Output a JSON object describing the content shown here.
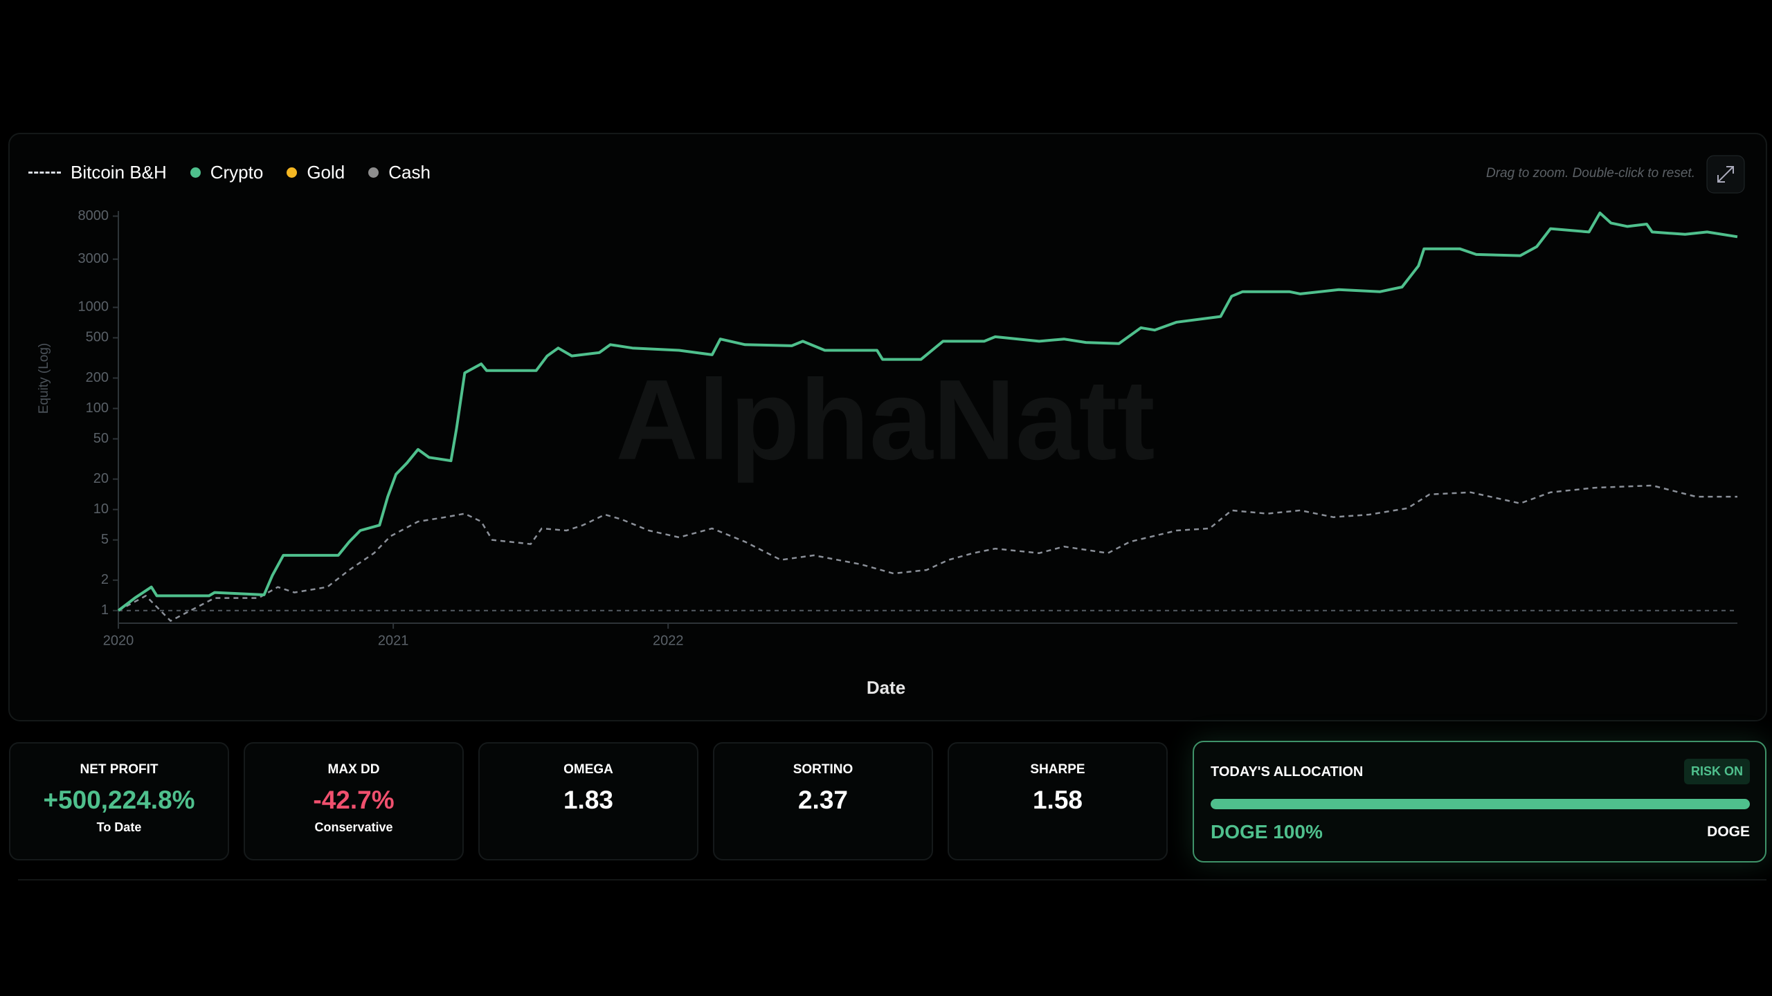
{
  "chart_data": {
    "type": "line",
    "yscale": "log",
    "grid": false,
    "legend": [
      {
        "name": "Bitcoin B&H",
        "color": "#d9dde3",
        "marker": "dashed-line"
      },
      {
        "name": "Crypto",
        "color": "#4fc08d",
        "marker": "dot"
      },
      {
        "name": "Gold",
        "color": "#f5b722",
        "marker": "dot"
      },
      {
        "name": "Cash",
        "color": "#8e8e8e",
        "marker": "dot"
      }
    ],
    "hint": "Drag to zoom. Double-click to reset.",
    "watermark": "AlphaNatt",
    "ylabel": "Equity (Log)",
    "xlabel": "Date",
    "xlim": [
      2020,
      2025.89
    ],
    "xticks": [
      2020,
      2021,
      2022
    ],
    "ylim": [
      0.75,
      9000
    ],
    "yticks": [
      1,
      2,
      5,
      10,
      20,
      50,
      100,
      200,
      500,
      1000,
      3000,
      8000
    ],
    "reference_line": 1,
    "series": [
      {
        "color": "#4fc08d",
        "dashed": false,
        "x": [
          2020.0,
          2020.06,
          2020.12,
          2020.14,
          2020.19,
          2020.33,
          2020.35,
          2020.53,
          2020.56,
          2020.6,
          2020.8,
          2020.84,
          2020.88,
          2020.95,
          2020.98,
          2021.01,
          2021.05,
          2021.09,
          2021.13,
          2021.21,
          2021.23,
          2021.26,
          2021.32,
          2021.34,
          2021.52,
          2021.56,
          2021.6,
          2021.65,
          2021.75,
          2021.79,
          2021.87,
          2022.04,
          2022.16,
          2022.19,
          2022.28,
          2022.45,
          2022.49,
          2022.57,
          2022.76,
          2022.78,
          2022.92,
          2023.0,
          2023.15,
          2023.19,
          2023.35,
          2023.44,
          2023.52,
          2023.64,
          2023.72,
          2023.77,
          2023.85,
          2024.01,
          2024.05,
          2024.09,
          2024.26,
          2024.3,
          2024.44,
          2024.59,
          2024.67,
          2024.73,
          2024.75,
          2024.88,
          2024.94,
          2025.1,
          2025.16,
          2025.21,
          2025.35,
          2025.39,
          2025.43,
          2025.49,
          2025.56,
          2025.58,
          2025.7,
          2025.78,
          2025.89
        ],
        "values": [
          1.0,
          1.33,
          1.71,
          1.4,
          1.4,
          1.4,
          1.51,
          1.43,
          2.22,
          3.52,
          3.52,
          4.79,
          6.2,
          7.0,
          13.4,
          22.3,
          28.9,
          39.3,
          32.8,
          30.4,
          62.4,
          225,
          276,
          237,
          237,
          331,
          396,
          331,
          357,
          428,
          396,
          376,
          340,
          486,
          428,
          417,
          462,
          376,
          376,
          306,
          306,
          462,
          462,
          512,
          462,
          486,
          450,
          439,
          628,
          597,
          714,
          812,
          1290,
          1430,
          1430,
          1360,
          1500,
          1430,
          1590,
          2580,
          3800,
          3800,
          3340,
          3250,
          3990,
          6010,
          5570,
          8600,
          6840,
          6320,
          6670,
          5570,
          5280,
          5570,
          5000
        ]
      },
      {
        "color": "#8b9099",
        "dashed": true,
        "x": [
          2020.0,
          2020.1,
          2020.19,
          2020.23,
          2020.35,
          2020.51,
          2020.58,
          2020.64,
          2020.76,
          2020.84,
          2020.93,
          2020.99,
          2021.09,
          2021.19,
          2021.26,
          2021.32,
          2021.36,
          2021.5,
          2021.54,
          2021.63,
          2021.69,
          2021.77,
          2021.83,
          2021.93,
          2022.04,
          2022.16,
          2022.28,
          2022.41,
          2022.53,
          2022.7,
          2022.82,
          2022.94,
          2023.02,
          2023.11,
          2023.19,
          2023.35,
          2023.44,
          2023.6,
          2023.68,
          2023.85,
          2023.97,
          2024.05,
          2024.18,
          2024.3,
          2024.42,
          2024.55,
          2024.69,
          2024.77,
          2024.92,
          2025.1,
          2025.21,
          2025.37,
          2025.58,
          2025.74,
          2025.89
        ],
        "values": [
          1.0,
          1.4,
          0.79,
          0.9,
          1.33,
          1.33,
          1.71,
          1.51,
          1.71,
          2.52,
          3.7,
          5.44,
          7.6,
          8.4,
          9.1,
          7.6,
          5.0,
          4.55,
          6.5,
          6.2,
          7.0,
          8.9,
          8.0,
          6.2,
          5.3,
          6.5,
          4.79,
          3.17,
          3.52,
          2.87,
          2.33,
          2.52,
          3.17,
          3.7,
          4.1,
          3.7,
          4.3,
          3.7,
          4.79,
          6.2,
          6.5,
          9.8,
          9.1,
          9.8,
          8.4,
          8.9,
          10.3,
          14.1,
          14.8,
          11.5,
          14.8,
          16.4,
          17.3,
          13.4,
          13.4
        ]
      }
    ]
  },
  "metrics": [
    {
      "label": "NET PROFIT",
      "value": "+500,224.8%",
      "sub": "To Date",
      "color": "#4fc08d"
    },
    {
      "label": "MAX DD",
      "value": "-42.7%",
      "sub": "Conservative",
      "color": "#f0506e"
    },
    {
      "label": "OMEGA",
      "value": "1.83",
      "color": "#ffffff"
    },
    {
      "label": "SORTINO",
      "value": "2.37",
      "color": "#ffffff"
    },
    {
      "label": "SHARPE",
      "value": "1.58",
      "color": "#ffffff"
    }
  ],
  "allocation": {
    "title": "TODAY'S ALLOCATION",
    "badge": "RISK ON",
    "asset_text": "DOGE 100%",
    "asset": "DOGE",
    "share": 100
  }
}
